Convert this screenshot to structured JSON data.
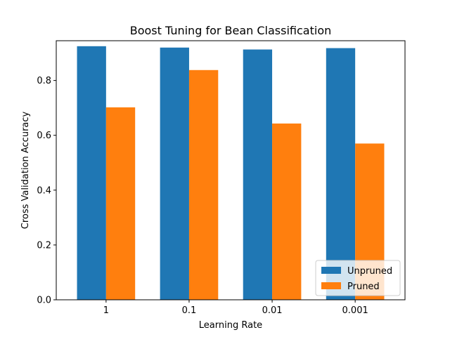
{
  "chart_data": {
    "type": "bar",
    "title": "Boost Tuning for Bean Classification",
    "xlabel": "Learning Rate",
    "ylabel": "Cross Validation Accuracy",
    "categories": [
      "1",
      "0.1",
      "0.01",
      "0.001"
    ],
    "series": [
      {
        "name": "Unpruned",
        "color": "#1f77b4",
        "values": [
          0.925,
          0.92,
          0.913,
          0.918
        ]
      },
      {
        "name": "Pruned",
        "color": "#ff7f0e",
        "values": [
          0.702,
          0.838,
          0.643,
          0.57
        ]
      }
    ],
    "ylim": [
      0,
      0.945
    ],
    "yticks": [
      "0.0",
      "0.2",
      "0.4",
      "0.6",
      "0.8"
    ],
    "grid": false,
    "legend_position": "lower-right"
  }
}
